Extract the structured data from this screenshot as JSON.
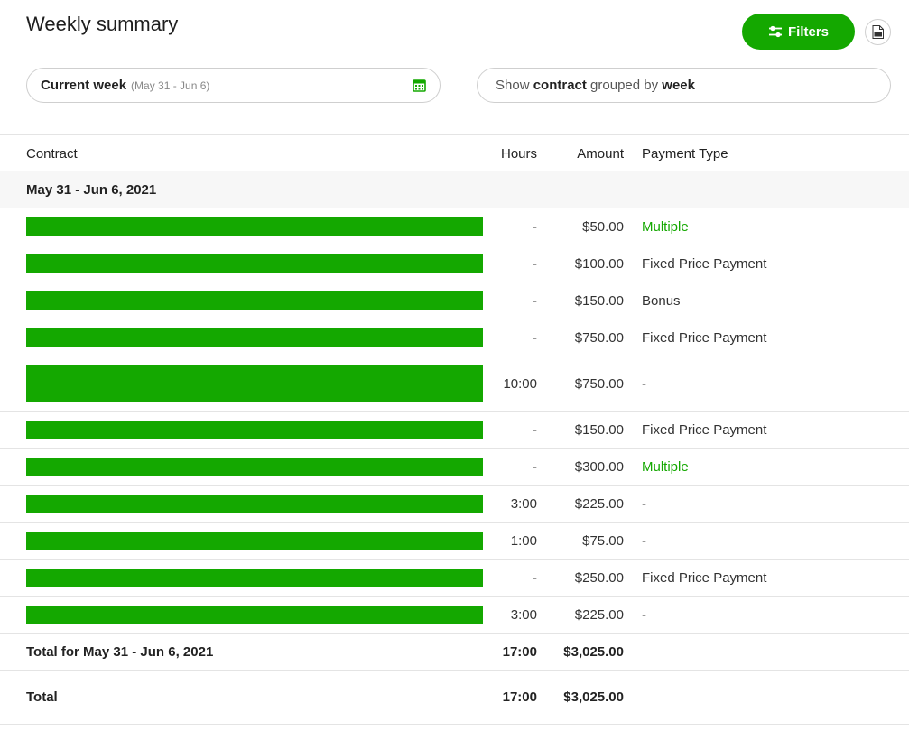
{
  "header": {
    "title": "Weekly summary",
    "filters_label": "Filters"
  },
  "controls": {
    "week_label": "Current week",
    "week_range": "(May 31 - Jun 6)",
    "group_prefix": "Show ",
    "group_field": "contract",
    "group_mid": " grouped by ",
    "group_period": "week"
  },
  "table": {
    "columns": {
      "contract": "Contract",
      "hours": "Hours",
      "amount": "Amount",
      "payment_type": "Payment Type"
    },
    "group_label": "May 31 - Jun 6, 2021",
    "rows": [
      {
        "hours": "-",
        "amount": "$50.00",
        "payment_type": "Multiple",
        "highlight": true
      },
      {
        "hours": "-",
        "amount": "$100.00",
        "payment_type": "Fixed Price Payment",
        "highlight": false
      },
      {
        "hours": "-",
        "amount": "$150.00",
        "payment_type": "Bonus",
        "highlight": false
      },
      {
        "hours": "-",
        "amount": "$750.00",
        "payment_type": "Fixed Price Payment",
        "highlight": false
      },
      {
        "hours": "10:00",
        "amount": "$750.00",
        "payment_type": "-",
        "highlight": false
      },
      {
        "hours": "-",
        "amount": "$150.00",
        "payment_type": "Fixed Price Payment",
        "highlight": false
      },
      {
        "hours": "-",
        "amount": "$300.00",
        "payment_type": "Multiple",
        "highlight": true
      },
      {
        "hours": "3:00",
        "amount": "$225.00",
        "payment_type": "-",
        "highlight": false
      },
      {
        "hours": "1:00",
        "amount": "$75.00",
        "payment_type": "-",
        "highlight": false
      },
      {
        "hours": "-",
        "amount": "$250.00",
        "payment_type": "Fixed Price Payment",
        "highlight": false
      },
      {
        "hours": "3:00",
        "amount": "$225.00",
        "payment_type": "-",
        "highlight": false
      }
    ],
    "week_total": {
      "label": "Total for May 31 - Jun 6, 2021",
      "hours": "17:00",
      "amount": "$3,025.00"
    },
    "grand_total": {
      "label": "Total",
      "hours": "17:00",
      "amount": "$3,025.00"
    }
  },
  "colors": {
    "accent": "#14a800",
    "border": "#e4e4e4",
    "group_bg": "#f7f7f7"
  },
  "icons": [
    "sliders-icon",
    "csv-file-icon",
    "calendar-icon"
  ]
}
